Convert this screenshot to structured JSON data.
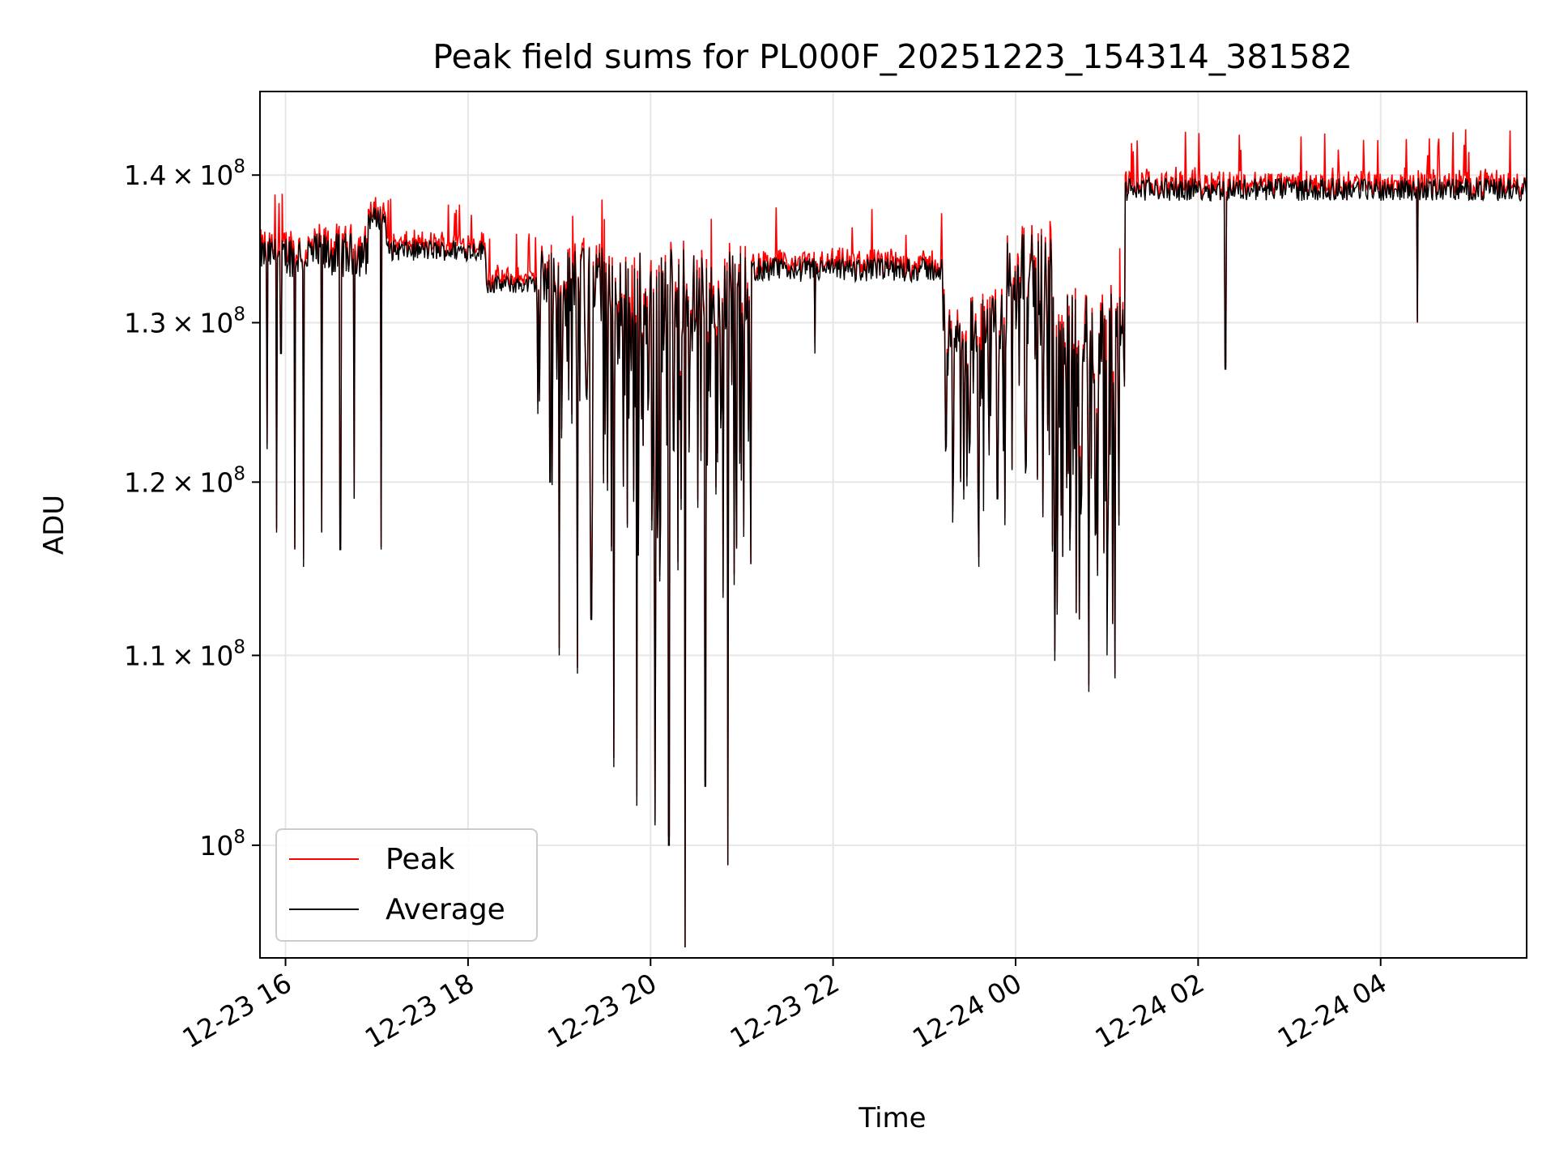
{
  "chart_data": {
    "type": "line",
    "title": "Peak field sums for PL000F_20251223_154314_381582",
    "xlabel": "Time",
    "ylabel": "ADU",
    "y_scale": "log",
    "grid": true,
    "legend_position": "lower-left",
    "xlim_hours": [
      15.72,
      29.6
    ],
    "ylim": [
      94500000,
      146000000
    ],
    "x_ticks": [
      {
        "hour": 16,
        "label": "12-23 16"
      },
      {
        "hour": 18,
        "label": "12-23 18"
      },
      {
        "hour": 20,
        "label": "12-23 20"
      },
      {
        "hour": 22,
        "label": "12-23 22"
      },
      {
        "hour": 24,
        "label": "12-24 00"
      },
      {
        "hour": 26,
        "label": "12-24 02"
      },
      {
        "hour": 28,
        "label": "12-24 04"
      }
    ],
    "y_ticks": [
      {
        "value": 100000000,
        "mantissa": "",
        "exponent": "8"
      },
      {
        "value": 110000000,
        "mantissa": "1.1",
        "exponent": "8"
      },
      {
        "value": 120000000,
        "mantissa": "1.2",
        "exponent": "8"
      },
      {
        "value": 130000000,
        "mantissa": "1.3",
        "exponent": "8"
      },
      {
        "value": 140000000,
        "mantissa": "1.4",
        "exponent": "8"
      }
    ],
    "series": [
      {
        "name": "Peak",
        "color": "#ff0000"
      },
      {
        "name": "Average",
        "color": "#000000"
      }
    ],
    "segments_x_in_hours_y_in_units_of_1e8": [
      {
        "start": 15.72,
        "end": 16.0,
        "base": 1.345,
        "noise": 0.012,
        "dips": [
          [
            15.8,
            1.22
          ],
          [
            15.9,
            1.17
          ],
          [
            15.95,
            1.28
          ]
        ]
      },
      {
        "start": 16.0,
        "end": 16.9,
        "base": 1.345,
        "noise": 0.015,
        "dips": [
          [
            16.1,
            1.16
          ],
          [
            16.2,
            1.15
          ],
          [
            16.4,
            1.17
          ],
          [
            16.6,
            1.16
          ],
          [
            16.75,
            1.19
          ]
        ]
      },
      {
        "start": 16.9,
        "end": 17.1,
        "base": 1.37,
        "noise": 0.008,
        "dips": [
          [
            17.05,
            1.16
          ]
        ]
      },
      {
        "start": 17.1,
        "end": 18.2,
        "base": 1.348,
        "noise": 0.007,
        "dips": []
      },
      {
        "start": 18.2,
        "end": 18.75,
        "base": 1.325,
        "noise": 0.006,
        "dips": []
      },
      {
        "start": 18.75,
        "end": 19.5,
        "base": 1.33,
        "noise": 0.02,
        "dips": [
          [
            18.9,
            1.2
          ],
          [
            19.0,
            1.1
          ],
          [
            19.2,
            1.09
          ],
          [
            19.35,
            1.12
          ]
        ]
      },
      {
        "start": 19.5,
        "end": 21.1,
        "base": 1.32,
        "noise": 0.03,
        "dips": [
          [
            19.6,
            1.04
          ],
          [
            19.85,
            1.02
          ],
          [
            20.05,
            1.01
          ],
          [
            20.2,
            1.0
          ],
          [
            20.38,
            0.95
          ],
          [
            20.6,
            1.03
          ],
          [
            20.85,
            0.99
          ]
        ]
      },
      {
        "start": 21.1,
        "end": 23.2,
        "base": 1.335,
        "noise": 0.008,
        "dips": [
          [
            21.8,
            1.28
          ]
        ]
      },
      {
        "start": 23.2,
        "end": 23.9,
        "base": 1.3,
        "noise": 0.02,
        "dips": [
          [
            23.4,
            1.2
          ],
          [
            23.6,
            1.15
          ],
          [
            23.8,
            1.19
          ]
        ]
      },
      {
        "start": 23.9,
        "end": 24.4,
        "base": 1.335,
        "noise": 0.025,
        "dips": [
          [
            24.1,
            1.24
          ]
        ]
      },
      {
        "start": 24.4,
        "end": 25.2,
        "base": 1.29,
        "noise": 0.03,
        "dips": [
          [
            24.5,
            1.18
          ],
          [
            24.7,
            1.12
          ],
          [
            24.8,
            1.08
          ],
          [
            25.0,
            1.1
          ]
        ]
      },
      {
        "start": 25.2,
        "end": 29.6,
        "base": 1.39,
        "noise": 0.008,
        "dips": [
          [
            26.3,
            1.27
          ],
          [
            28.4,
            1.3
          ]
        ]
      }
    ]
  }
}
